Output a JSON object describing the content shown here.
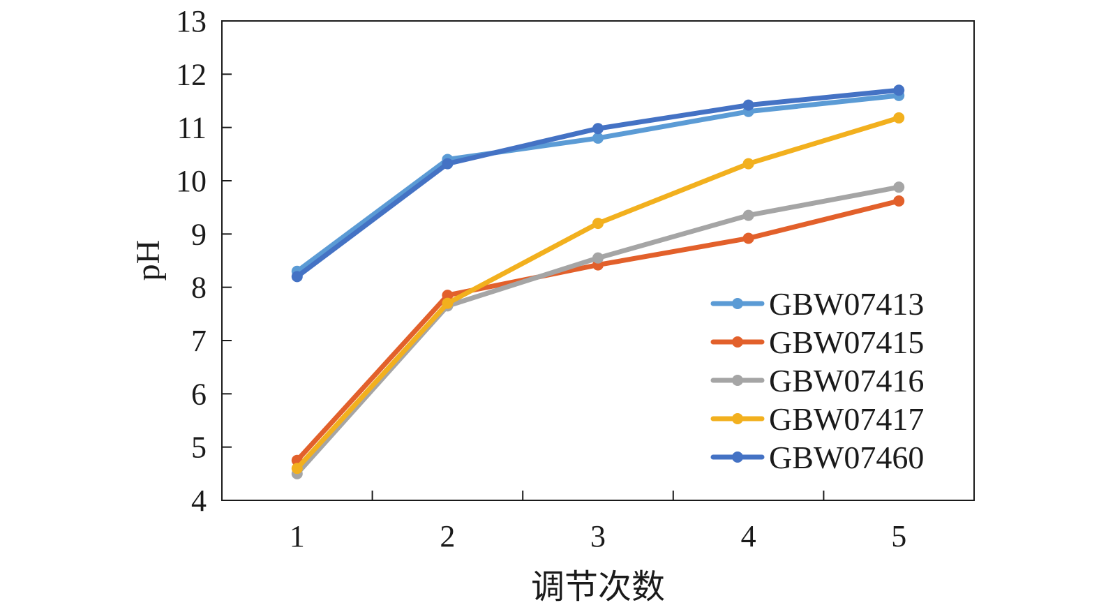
{
  "chart_data": {
    "type": "line",
    "xlabel": "调节次数",
    "ylabel": "pH",
    "x": [
      1,
      2,
      3,
      4,
      5
    ],
    "xlim": [
      0.5,
      5.5
    ],
    "ylim": [
      4,
      13
    ],
    "yticks": [
      4,
      5,
      6,
      7,
      8,
      9,
      10,
      11,
      12,
      13
    ],
    "xticks": [
      1,
      2,
      3,
      4,
      5
    ],
    "legend_position": "bottom-right",
    "grid": false,
    "series": [
      {
        "name": "GBW07413",
        "color": "#5b9bd5",
        "values": [
          8.3,
          10.4,
          10.8,
          11.3,
          11.6
        ]
      },
      {
        "name": "GBW07415",
        "color": "#e2602b",
        "values": [
          4.75,
          7.85,
          8.42,
          8.92,
          9.62
        ]
      },
      {
        "name": "GBW07416",
        "color": "#a5a5a5",
        "values": [
          4.5,
          7.65,
          8.55,
          9.35,
          9.88
        ]
      },
      {
        "name": "GBW07417",
        "color": "#f2b01e",
        "values": [
          4.6,
          7.7,
          9.2,
          10.32,
          11.18
        ]
      },
      {
        "name": "GBW07460",
        "color": "#4472c4",
        "values": [
          8.2,
          10.32,
          10.98,
          11.42,
          11.7
        ]
      }
    ]
  }
}
